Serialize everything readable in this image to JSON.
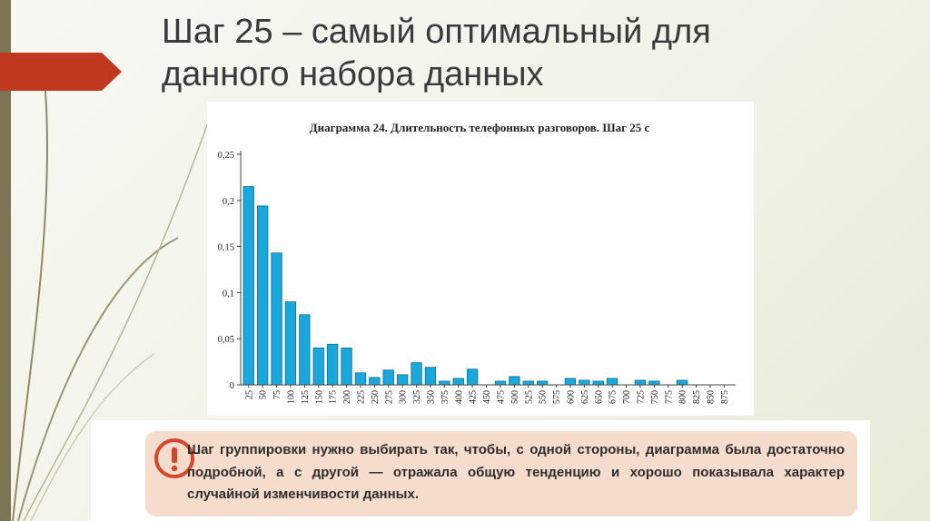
{
  "slide": {
    "title_line1": "Шаг 25 – самый оптимальный для",
    "title_line2": "данного набора данных"
  },
  "note": {
    "icon": "exclamation-icon",
    "text": "Шаг группировки нужно выбирать так, чтобы, с одной стороны, диаграмма была достаточно подробной, а с другой — отражала общую тенденцию и хорошо показывала характер случайной изменчивости данных."
  },
  "colors": {
    "bar": "#1aa7dc",
    "bar_stroke": "#0d6f99",
    "accent_red": "#c0391f",
    "stripe": "#7c7453",
    "note_bg": "#f6dccc"
  },
  "chart_data": {
    "type": "bar",
    "title": "Диаграмма 24. Длительность телефонных разговоров. Шаг 25 с",
    "xlabel": "",
    "ylabel": "",
    "categories": [
      "25",
      "50",
      "75",
      "100",
      "125",
      "150",
      "175",
      "200",
      "225",
      "250",
      "275",
      "300",
      "325",
      "350",
      "375",
      "400",
      "425",
      "450",
      "475",
      "500",
      "525",
      "550",
      "575",
      "600",
      "625",
      "650",
      "675",
      "700",
      "725",
      "750",
      "775",
      "800",
      "825",
      "850",
      "875"
    ],
    "values": [
      0.215,
      0.194,
      0.143,
      0.09,
      0.076,
      0.04,
      0.044,
      0.04,
      0.013,
      0.008,
      0.016,
      0.011,
      0.024,
      0.019,
      0.004,
      0.007,
      0.017,
      0,
      0.004,
      0.009,
      0.004,
      0.004,
      0,
      0.007,
      0.005,
      0.004,
      0.007,
      0,
      0.005,
      0.004,
      0,
      0.005,
      0,
      0,
      0
    ],
    "yticks": [
      "0",
      "0,05",
      "0,1",
      "0,15",
      "0,2",
      "0,25"
    ],
    "ylim": [
      0,
      0.25
    ],
    "grid": false,
    "legend": "none"
  }
}
